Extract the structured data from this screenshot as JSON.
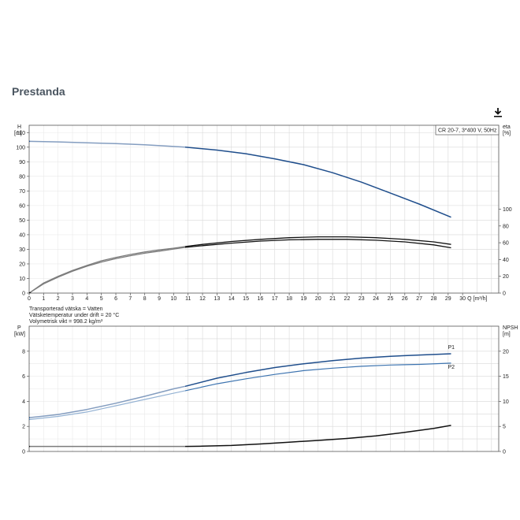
{
  "heading": "Prestanda",
  "download_icon": "download-icon",
  "notes": [
    "Transporterad vätska = Vatten",
    "Vätsketemperatur under drift = 20 °C",
    "Volymetrisk vikt = 998.2 kg/m³"
  ],
  "colors": {
    "blue": "#1f4e8c",
    "lightblue": "#3d74b0",
    "black": "#111111",
    "grey": "#888888",
    "grid": "#d8d8d8"
  },
  "chart_data": [
    {
      "type": "line",
      "legend_box": "CR 20-7, 3*400 V, 50Hz",
      "xlabel": "Q [m³/h]",
      "x_ticks": [
        0,
        1,
        2,
        3,
        4,
        5,
        6,
        7,
        8,
        9,
        10,
        11,
        12,
        13,
        14,
        15,
        16,
        17,
        18,
        19,
        20,
        21,
        22,
        23,
        24,
        25,
        26,
        27,
        28,
        29,
        30
      ],
      "xlim": [
        0,
        32.5
      ],
      "ylabel_left": [
        "H",
        "[m]"
      ],
      "ylim_left": [
        0,
        115
      ],
      "y_ticks_left": [
        0,
        10,
        20,
        30,
        40,
        50,
        60,
        70,
        80,
        90,
        100,
        110
      ],
      "ylabel_right": [
        "eta",
        "[%]"
      ],
      "ylim_right": [
        0,
        200
      ],
      "y_ticks_right": [
        0,
        20,
        40,
        60,
        80,
        100
      ],
      "grid": true,
      "series": [
        {
          "axis": "left",
          "color": "#1f4e8c",
          "width": 1.5,
          "x": [
            0,
            2,
            4,
            6,
            8,
            10,
            10.8,
            13,
            15,
            17,
            19,
            21,
            23,
            25,
            27,
            29.2
          ],
          "y": [
            104,
            103.6,
            103,
            102.4,
            101.6,
            100.5,
            100,
            98,
            95.5,
            92,
            88,
            82.5,
            76,
            68.5,
            61,
            52
          ]
        },
        {
          "axis": "right",
          "color": "#111111",
          "width": 1.3,
          "x": [
            0,
            1,
            2,
            3,
            4,
            5,
            6,
            7,
            8,
            9,
            10,
            10.8,
            12,
            14,
            16,
            18,
            20,
            22,
            24,
            26,
            28,
            29.2
          ],
          "y": [
            0,
            11,
            19,
            26,
            32,
            37,
            41,
            44.5,
            47.5,
            50,
            52.5,
            54.5,
            56.5,
            59.5,
            62,
            63.5,
            64,
            64,
            63,
            61,
            57.5,
            54
          ]
        },
        {
          "axis": "right",
          "color": "#111111",
          "width": 1.3,
          "x": [
            0,
            1,
            2,
            3,
            4,
            5,
            6,
            7,
            8,
            9,
            10,
            10.8,
            12,
            14,
            16,
            18,
            20,
            22,
            24,
            26,
            28,
            29.2
          ],
          "y": [
            0,
            12,
            20,
            27,
            33,
            38.5,
            42.5,
            46,
            49,
            51.5,
            53.5,
            55.5,
            58,
            61.5,
            64,
            66,
            67,
            67,
            66,
            64,
            61,
            58
          ]
        }
      ]
    },
    {
      "type": "line",
      "xlim": [
        0,
        32.5
      ],
      "ylabel_left": [
        "P",
        "[kW]"
      ],
      "ylim_left": [
        0,
        10
      ],
      "y_ticks_left": [
        0,
        2,
        4,
        6,
        8
      ],
      "ylabel_right": [
        "NPSH",
        "[m]"
      ],
      "ylim_right": [
        0,
        25
      ],
      "y_ticks_right": [
        0,
        5,
        10,
        15,
        20
      ],
      "grid": true,
      "series": [
        {
          "name": "P1",
          "axis": "left",
          "color": "#1f4e8c",
          "width": 1.5,
          "x": [
            0,
            2,
            4,
            6,
            8,
            10,
            10.8,
            13,
            15,
            17,
            19,
            21,
            23,
            25,
            27,
            29.2
          ],
          "y": [
            2.7,
            2.95,
            3.35,
            3.85,
            4.4,
            5.0,
            5.2,
            5.85,
            6.3,
            6.7,
            7.0,
            7.25,
            7.45,
            7.6,
            7.7,
            7.8
          ]
        },
        {
          "name": "P2",
          "axis": "left",
          "color": "#3d74b0",
          "width": 1.2,
          "x": [
            0,
            2,
            4,
            6,
            8,
            10,
            10.8,
            13,
            15,
            17,
            19,
            21,
            23,
            25,
            27,
            29.2
          ],
          "y": [
            2.55,
            2.8,
            3.15,
            3.65,
            4.15,
            4.65,
            4.85,
            5.4,
            5.8,
            6.15,
            6.45,
            6.65,
            6.8,
            6.9,
            6.95,
            7.05
          ]
        },
        {
          "axis": "right",
          "color": "#111111",
          "width": 1.5,
          "x": [
            0,
            4,
            8,
            10.8,
            12,
            14,
            16,
            18,
            20,
            22,
            24,
            26,
            28,
            29.2
          ],
          "y": [
            1.0,
            1.0,
            1.0,
            1.0,
            1.05,
            1.2,
            1.5,
            1.85,
            2.2,
            2.6,
            3.1,
            3.8,
            4.6,
            5.2
          ]
        }
      ]
    }
  ]
}
